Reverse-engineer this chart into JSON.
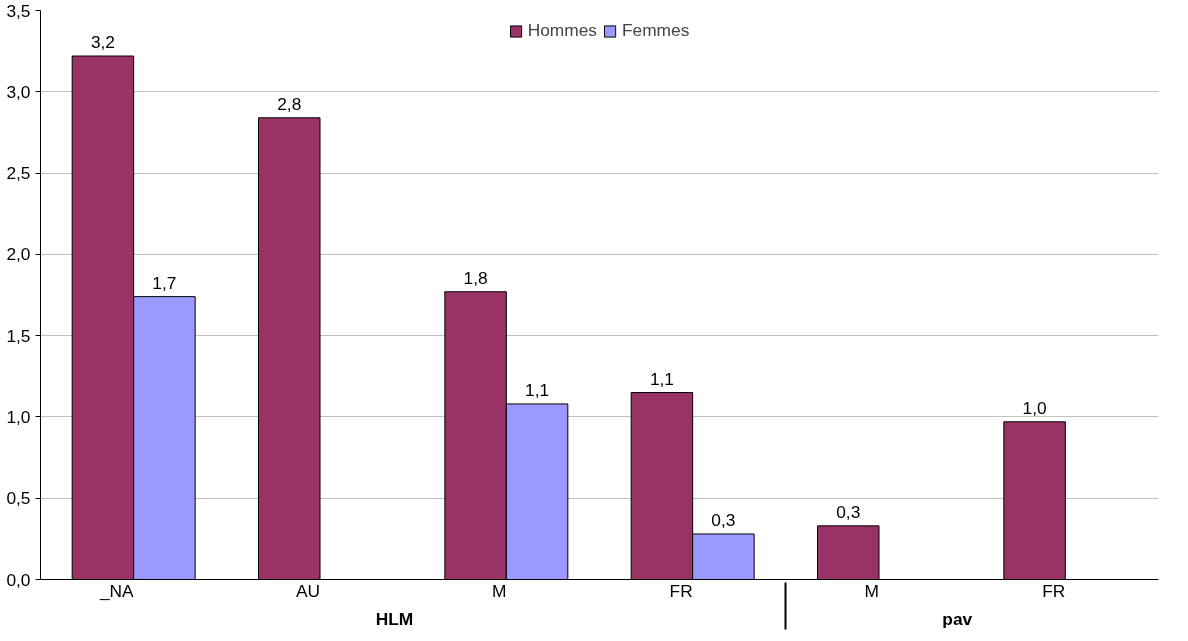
{
  "chart_data": {
    "type": "bar",
    "categories": [
      "_NA",
      "AU",
      "M",
      "FR",
      "M",
      "FR"
    ],
    "series": [
      {
        "name": "Hommes",
        "color": "#993366",
        "values": [
          3.22,
          2.84,
          1.77,
          1.15,
          0.33,
          0.97
        ],
        "value_labels": [
          "3,2",
          "2,8",
          "1,8",
          "1,1",
          "0,3",
          "1,0"
        ]
      },
      {
        "name": "Femmes",
        "color": "#9999ff",
        "values": [
          1.74,
          null,
          1.08,
          0.28,
          null,
          null
        ],
        "value_labels": [
          "1,7",
          null,
          "1,1",
          "0,3",
          null,
          null
        ]
      }
    ],
    "annotations": [
      "HLM",
      "pav"
    ],
    "ylim": [
      0,
      3.5
    ],
    "yticks": [
      {
        "value": 0,
        "label": "0,0"
      },
      {
        "value": 0.5,
        "label": "0,5"
      },
      {
        "value": 1,
        "label": "1,0"
      },
      {
        "value": 1.5,
        "label": "1,5"
      },
      {
        "value": 2,
        "label": "2,0"
      },
      {
        "value": 2.5,
        "label": "2,5"
      },
      {
        "value": 3,
        "label": "3,0"
      },
      {
        "value": 3.5,
        "label": "3,5"
      }
    ],
    "grid": "y",
    "legend": "top"
  }
}
